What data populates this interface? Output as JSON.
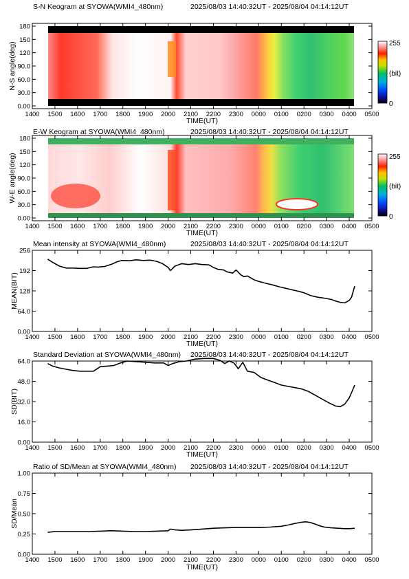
{
  "chart_data": [
    {
      "type": "heatmap",
      "title": "S-N Keogram at SYOWA(WMI4_480nm)",
      "time_range": "2025/08/03 14:40:32UT - 2025/08/04 04:14:12UT",
      "xlabel": "TIME(UT)",
      "ylabel": "N-S angle(deg)",
      "x_tick_labels": [
        "1400",
        "1500",
        "1600",
        "1700",
        "1800",
        "1900",
        "2000",
        "2100",
        "2200",
        "2300",
        "0000",
        "0100",
        "0200",
        "0300",
        "0400",
        "0500"
      ],
      "y_tick_labels": [
        "0.00",
        "30.0",
        "60.0",
        "90.0",
        "120",
        "150",
        "180"
      ],
      "ylim": [
        0,
        180
      ],
      "colorbar": {
        "min_label": "0",
        "max_label": "255",
        "unit_label": "(bit)"
      }
    },
    {
      "type": "heatmap",
      "title": "E-W Keogram at SYOWA(WMI4_480nm)",
      "time_range": "2025/08/03 14:40:32UT - 2025/08/04 04:14:12UT",
      "xlabel": "TIME(UT)",
      "ylabel": "W-E angle(deg)",
      "x_tick_labels": [
        "1400",
        "1500",
        "1600",
        "1700",
        "1800",
        "1900",
        "2000",
        "2100",
        "2200",
        "2300",
        "0000",
        "0100",
        "0200",
        "0300",
        "0400",
        "0500"
      ],
      "y_tick_labels": [
        "0.00",
        "30.0",
        "60.0",
        "90.0",
        "120",
        "150",
        "180"
      ],
      "ylim": [
        0,
        180
      ],
      "colorbar": {
        "min_label": "0",
        "max_label": "255",
        "unit_label": "(bit)"
      }
    },
    {
      "type": "line",
      "title": "Mean intensity at SYOWA(WMI4_480nm)",
      "time_range": "2025/08/03 14:40:32UT - 2025/08/04 04:14:12UT",
      "xlabel": "TIME(UT)",
      "ylabel": "MEAN(BIT)",
      "x_tick_labels": [
        "1400",
        "1500",
        "1600",
        "1700",
        "1800",
        "1900",
        "2000",
        "2100",
        "2200",
        "2300",
        "0000",
        "0100",
        "0200",
        "0300",
        "0400",
        "0500"
      ],
      "y_tick_labels": [
        "0.00",
        "64.0",
        "128",
        "192",
        "256"
      ],
      "xlim": [
        14.0,
        29.0
      ],
      "ylim": [
        0,
        256
      ],
      "x": [
        14.68,
        14.9,
        15.2,
        15.5,
        15.8,
        16.1,
        16.4,
        16.7,
        16.9,
        17.2,
        17.5,
        17.75,
        17.95,
        18.3,
        18.6,
        18.9,
        19.2,
        19.5,
        19.75,
        20.0,
        20.1,
        20.3,
        20.6,
        20.9,
        21.2,
        21.5,
        21.8,
        22.0,
        22.2,
        22.45,
        22.6,
        22.85,
        23.0,
        23.2,
        23.35,
        23.5,
        23.8,
        24.0,
        24.3,
        24.6,
        24.9,
        25.2,
        25.5,
        25.8,
        26.0,
        26.3,
        26.6,
        26.9,
        27.2,
        27.4,
        27.6,
        27.8,
        28.0,
        28.1,
        28.24
      ],
      "y": [
        228,
        218,
        206,
        200,
        200,
        199,
        199,
        204,
        203,
        205,
        212,
        220,
        224,
        223,
        226,
        224,
        225,
        221,
        214,
        202,
        192,
        206,
        214,
        211,
        214,
        211,
        210,
        202,
        196,
        194,
        188,
        184,
        194,
        179,
        173,
        175,
        163,
        158,
        152,
        147,
        141,
        136,
        131,
        126,
        122,
        113,
        108,
        105,
        101,
        96,
        92,
        90,
        98,
        108,
        143
      ]
    },
    {
      "type": "line",
      "title": "Standard Deviation at SYOWA(WMI4_480nm)",
      "time_range": "2025/08/03 14:40:32UT - 2025/08/04 04:14:12UT",
      "xlabel": "TIME(UT)",
      "ylabel": "SD(BIT)",
      "x_tick_labels": [
        "1400",
        "1500",
        "1600",
        "1700",
        "1800",
        "1900",
        "2000",
        "2100",
        "2200",
        "2300",
        "0000",
        "0100",
        "0200",
        "0300",
        "0400",
        "0500"
      ],
      "y_tick_labels": [
        "0.00",
        "16.0",
        "32.0",
        "48.0",
        "64.0"
      ],
      "xlim": [
        14.0,
        29.0
      ],
      "ylim": [
        0,
        64
      ],
      "x": [
        14.68,
        14.9,
        15.2,
        15.5,
        15.8,
        16.1,
        16.4,
        16.7,
        17.0,
        17.3,
        17.6,
        17.9,
        18.2,
        18.6,
        19.0,
        19.4,
        19.8,
        20.0,
        20.2,
        20.5,
        20.8,
        21.2,
        21.6,
        22.0,
        22.3,
        22.5,
        22.7,
        22.9,
        23.1,
        23.3,
        23.5,
        23.8,
        24.1,
        24.4,
        24.7,
        25.0,
        25.3,
        25.6,
        25.9,
        26.2,
        26.5,
        26.8,
        27.1,
        27.4,
        27.6,
        27.8,
        28.0,
        28.1,
        28.24
      ],
      "y": [
        62,
        60,
        58.5,
        57.5,
        56.5,
        56,
        56,
        56,
        59.5,
        60,
        60.5,
        62.5,
        64,
        63.5,
        63,
        62.5,
        62.5,
        60.5,
        62,
        63.5,
        64,
        65.5,
        66,
        66,
        64.5,
        62,
        64,
        62.5,
        58,
        63,
        56,
        55,
        51,
        49,
        47,
        45,
        44,
        43,
        42,
        40,
        37,
        34,
        31,
        28.5,
        28,
        30,
        35,
        39,
        45
      ]
    },
    {
      "type": "line",
      "title": "Ratio of SD/Mean at SYOWA(WMI4_480nm)",
      "time_range": "2025/08/03 14:40:32UT - 2025/08/04 04:14:12UT",
      "xlabel": "TIME(UT)",
      "ylabel": "SD/Mean",
      "x_tick_labels": [
        "1400",
        "1500",
        "1600",
        "1700",
        "1800",
        "1900",
        "2000",
        "2100",
        "2200",
        "2300",
        "0000",
        "0100",
        "0200",
        "0300",
        "0400",
        "0500"
      ],
      "y_tick_labels": [
        "0.00",
        "0.25",
        "0.50",
        "0.75",
        "1.00"
      ],
      "xlim": [
        14.0,
        29.0
      ],
      "ylim": [
        0,
        1.0
      ],
      "x": [
        14.68,
        15.0,
        15.5,
        16.0,
        16.5,
        17.0,
        17.5,
        18.0,
        18.5,
        19.0,
        19.5,
        20.0,
        20.1,
        20.3,
        20.6,
        21.0,
        21.5,
        22.0,
        22.5,
        23.0,
        23.5,
        24.0,
        24.5,
        25.0,
        25.3,
        25.6,
        25.9,
        26.1,
        26.3,
        26.5,
        26.7,
        26.9,
        27.2,
        27.5,
        27.8,
        28.0,
        28.24
      ],
      "y": [
        0.27,
        0.28,
        0.28,
        0.28,
        0.28,
        0.285,
        0.29,
        0.285,
        0.28,
        0.28,
        0.285,
        0.29,
        0.31,
        0.3,
        0.295,
        0.3,
        0.31,
        0.32,
        0.325,
        0.33,
        0.33,
        0.33,
        0.335,
        0.345,
        0.36,
        0.38,
        0.395,
        0.4,
        0.39,
        0.37,
        0.35,
        0.335,
        0.325,
        0.32,
        0.315,
        0.315,
        0.32
      ]
    }
  ]
}
